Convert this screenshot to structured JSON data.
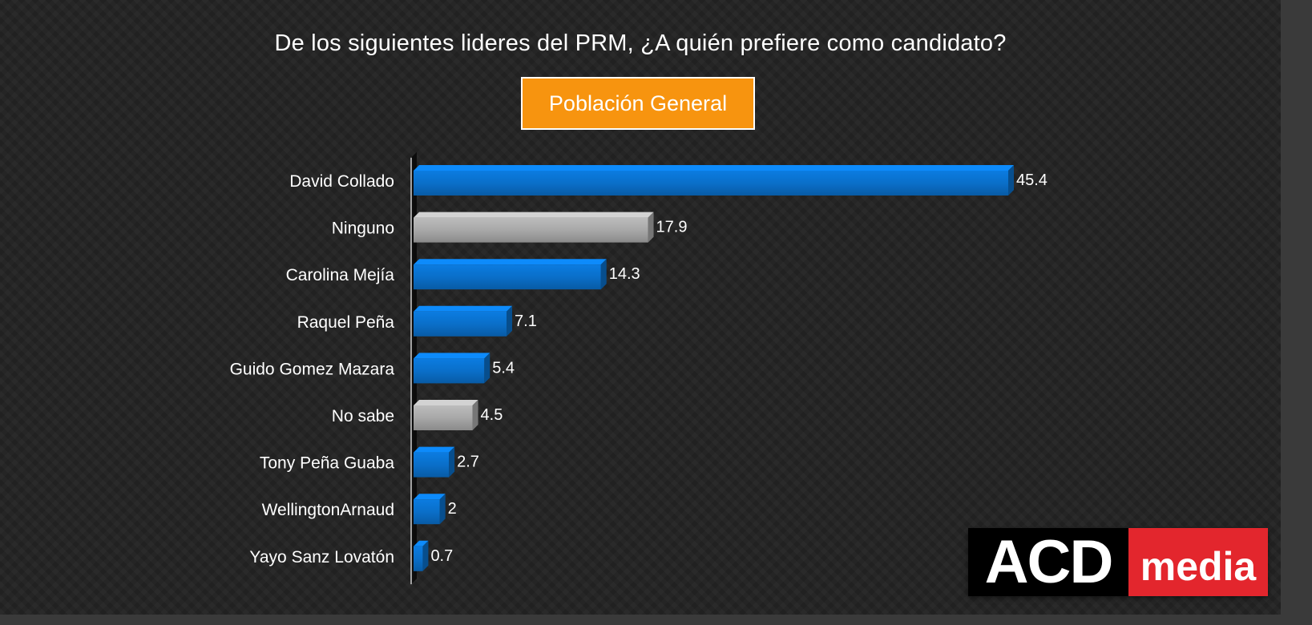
{
  "slide": {
    "title": "De los siguientes lideres del PRM, ¿A quién prefiere como candidato?",
    "subtitle": "Población General",
    "logo": {
      "part1": "ACD",
      "part2": "media"
    }
  },
  "colors": {
    "candidate_bar": "#0a6fc9",
    "neutral_bar": "#a8a8a8",
    "subtitle_bg": "#f7940f",
    "logo_red": "#e3262d"
  },
  "chart_data": {
    "type": "bar",
    "orientation": "horizontal",
    "title": "De los siguientes lideres del PRM, ¿A quién prefiere como candidato?",
    "subtitle": "Población General",
    "categories": [
      "David Collado",
      "Ninguno",
      "Carolina Mejía",
      "Raquel Peña",
      "Guido Gomez Mazara",
      "No sabe",
      "Tony Peña Guaba",
      "WellingtonArnaud",
      "Yayo Sanz Lovatón"
    ],
    "values": [
      45.4,
      17.9,
      14.3,
      7.1,
      5.4,
      4.5,
      2.7,
      2,
      0.7
    ],
    "value_labels": [
      "45.4",
      "17.9",
      "14.3",
      "7.1",
      "5.4",
      "4.5",
      "2.7",
      "2",
      "0.7"
    ],
    "bar_kinds": [
      "candidate",
      "neutral",
      "candidate",
      "candidate",
      "candidate",
      "neutral",
      "candidate",
      "candidate",
      "candidate"
    ],
    "xlim": [
      0,
      45.4
    ],
    "grid": false,
    "legend": false,
    "data_labels": true
  }
}
